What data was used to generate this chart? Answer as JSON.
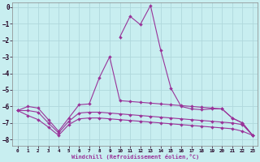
{
  "bg_color": "#c8eef0",
  "grid_color": "#b0d8dc",
  "line_color": "#993399",
  "xlabel": "Windchill (Refroidissement éolien,°C)",
  "xlim_min": -0.5,
  "xlim_max": 23.5,
  "ylim_min": -8.4,
  "ylim_max": 0.3,
  "yticks": [
    0,
    -1,
    -2,
    -3,
    -4,
    -5,
    -6,
    -7,
    -8
  ],
  "xticks": [
    0,
    1,
    2,
    3,
    4,
    5,
    6,
    7,
    8,
    9,
    10,
    11,
    12,
    13,
    14,
    15,
    16,
    17,
    18,
    19,
    20,
    21,
    22,
    23
  ],
  "series1_x": [
    10,
    11,
    12,
    13,
    14,
    15,
    16,
    17,
    18,
    19,
    20,
    21,
    22,
    23
  ],
  "series1_y": [
    -1.8,
    -0.55,
    -1.05,
    0.1,
    -2.6,
    -4.9,
    -6.0,
    -6.15,
    -6.2,
    -6.15,
    -6.15,
    -6.7,
    -7.0,
    -7.75
  ],
  "series2_x": [
    0,
    1,
    2,
    3,
    4,
    5,
    6,
    7,
    8,
    9,
    10,
    11,
    12,
    13,
    14,
    15,
    16,
    17,
    18,
    19,
    20,
    21,
    22,
    23
  ],
  "series2_y": [
    -6.25,
    -6.0,
    -6.1,
    -6.8,
    -7.5,
    -6.7,
    -5.9,
    -5.85,
    -4.25,
    -3.0,
    -5.65,
    -5.7,
    -5.75,
    -5.8,
    -5.85,
    -5.9,
    -5.95,
    -6.0,
    -6.05,
    -6.1,
    -6.15,
    -6.7,
    -7.0,
    -7.75
  ],
  "series3_x": [
    0,
    1,
    2,
    3,
    4,
    5,
    6,
    7,
    8,
    9,
    10,
    11,
    12,
    13,
    14,
    15,
    16,
    17,
    18,
    19,
    20,
    21,
    22,
    23
  ],
  "series3_y": [
    -6.25,
    -6.25,
    -6.35,
    -7.0,
    -7.6,
    -6.9,
    -6.4,
    -6.35,
    -6.35,
    -6.4,
    -6.45,
    -6.5,
    -6.55,
    -6.6,
    -6.65,
    -6.7,
    -6.75,
    -6.8,
    -6.85,
    -6.9,
    -6.95,
    -7.0,
    -7.1,
    -7.75
  ],
  "series4_x": [
    0,
    1,
    2,
    3,
    4,
    5,
    6,
    7,
    8,
    9,
    10,
    11,
    12,
    13,
    14,
    15,
    16,
    17,
    18,
    19,
    20,
    21,
    22,
    23
  ],
  "series4_y": [
    -6.25,
    -6.55,
    -6.8,
    -7.25,
    -7.75,
    -7.1,
    -6.75,
    -6.7,
    -6.7,
    -6.75,
    -6.8,
    -6.85,
    -6.9,
    -6.95,
    -7.0,
    -7.05,
    -7.1,
    -7.15,
    -7.2,
    -7.25,
    -7.3,
    -7.35,
    -7.5,
    -7.75
  ]
}
